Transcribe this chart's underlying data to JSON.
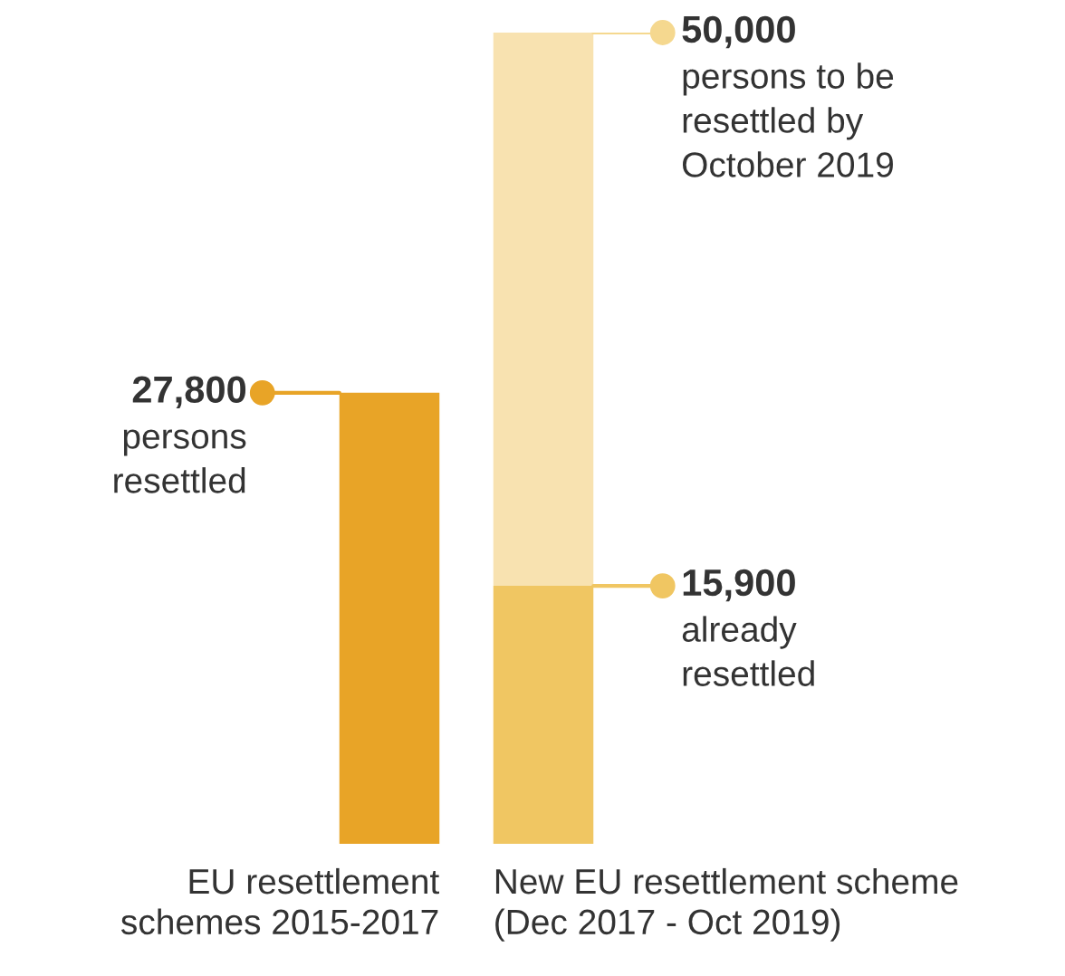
{
  "chart_data": {
    "type": "bar",
    "stacked": true,
    "categories": [
      "EU resettlement\nschemes 2015-2017",
      "New EU resettlement scheme\n(Dec 2017 - Oct 2019)"
    ],
    "series": [
      {
        "colors": [
          "#e8a427",
          "#f0c662"
        ],
        "values": [
          27800,
          15900
        ],
        "value_labels": [
          "27,800\npersons\nresettled",
          "15,900\nalready\nresettled"
        ]
      },
      {
        "colors": [
          "#f8e2b0",
          "#f8e2b0"
        ],
        "values": [
          null,
          34100
        ]
      }
    ],
    "totals": [
      null,
      "50,000\npersons to be\nresettled by\nOctober 2019"
    ]
  }
}
